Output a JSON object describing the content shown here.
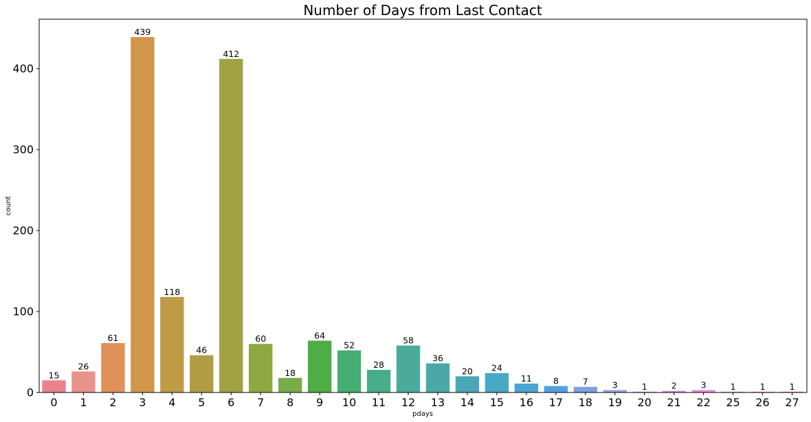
{
  "chart_data": {
    "type": "bar",
    "title": "Number of Days from Last Contact",
    "xlabel": "pdays",
    "ylabel": "count",
    "categories": [
      "0",
      "1",
      "2",
      "3",
      "4",
      "5",
      "6",
      "7",
      "8",
      "9",
      "10",
      "11",
      "12",
      "13",
      "14",
      "15",
      "16",
      "17",
      "18",
      "19",
      "20",
      "21",
      "22",
      "25",
      "26",
      "27"
    ],
    "values": [
      15,
      26,
      61,
      439,
      118,
      46,
      412,
      60,
      18,
      64,
      52,
      28,
      58,
      36,
      20,
      24,
      11,
      8,
      7,
      3,
      1,
      2,
      3,
      1,
      1,
      1
    ],
    "colors": [
      "#e8838c",
      "#e8948b",
      "#e0915a",
      "#d19649",
      "#bf9b48",
      "#b09d44",
      "#a1a243",
      "#8ea844",
      "#78ac4a",
      "#4ead44",
      "#46ad72",
      "#49ac8a",
      "#4aab9a",
      "#4aa9a7",
      "#4aa7b5",
      "#49a8c4",
      "#4aa5d4",
      "#52a1de",
      "#7fa1de",
      "#9ba0e0",
      "#bb98e3",
      "#d58de0",
      "#e58be0",
      "#e58ccc",
      "#e68cbf",
      "#e68cad"
    ],
    "yticks": [
      0,
      100,
      200,
      300,
      400
    ],
    "ylim": [
      0,
      461
    ],
    "grid": false
  }
}
